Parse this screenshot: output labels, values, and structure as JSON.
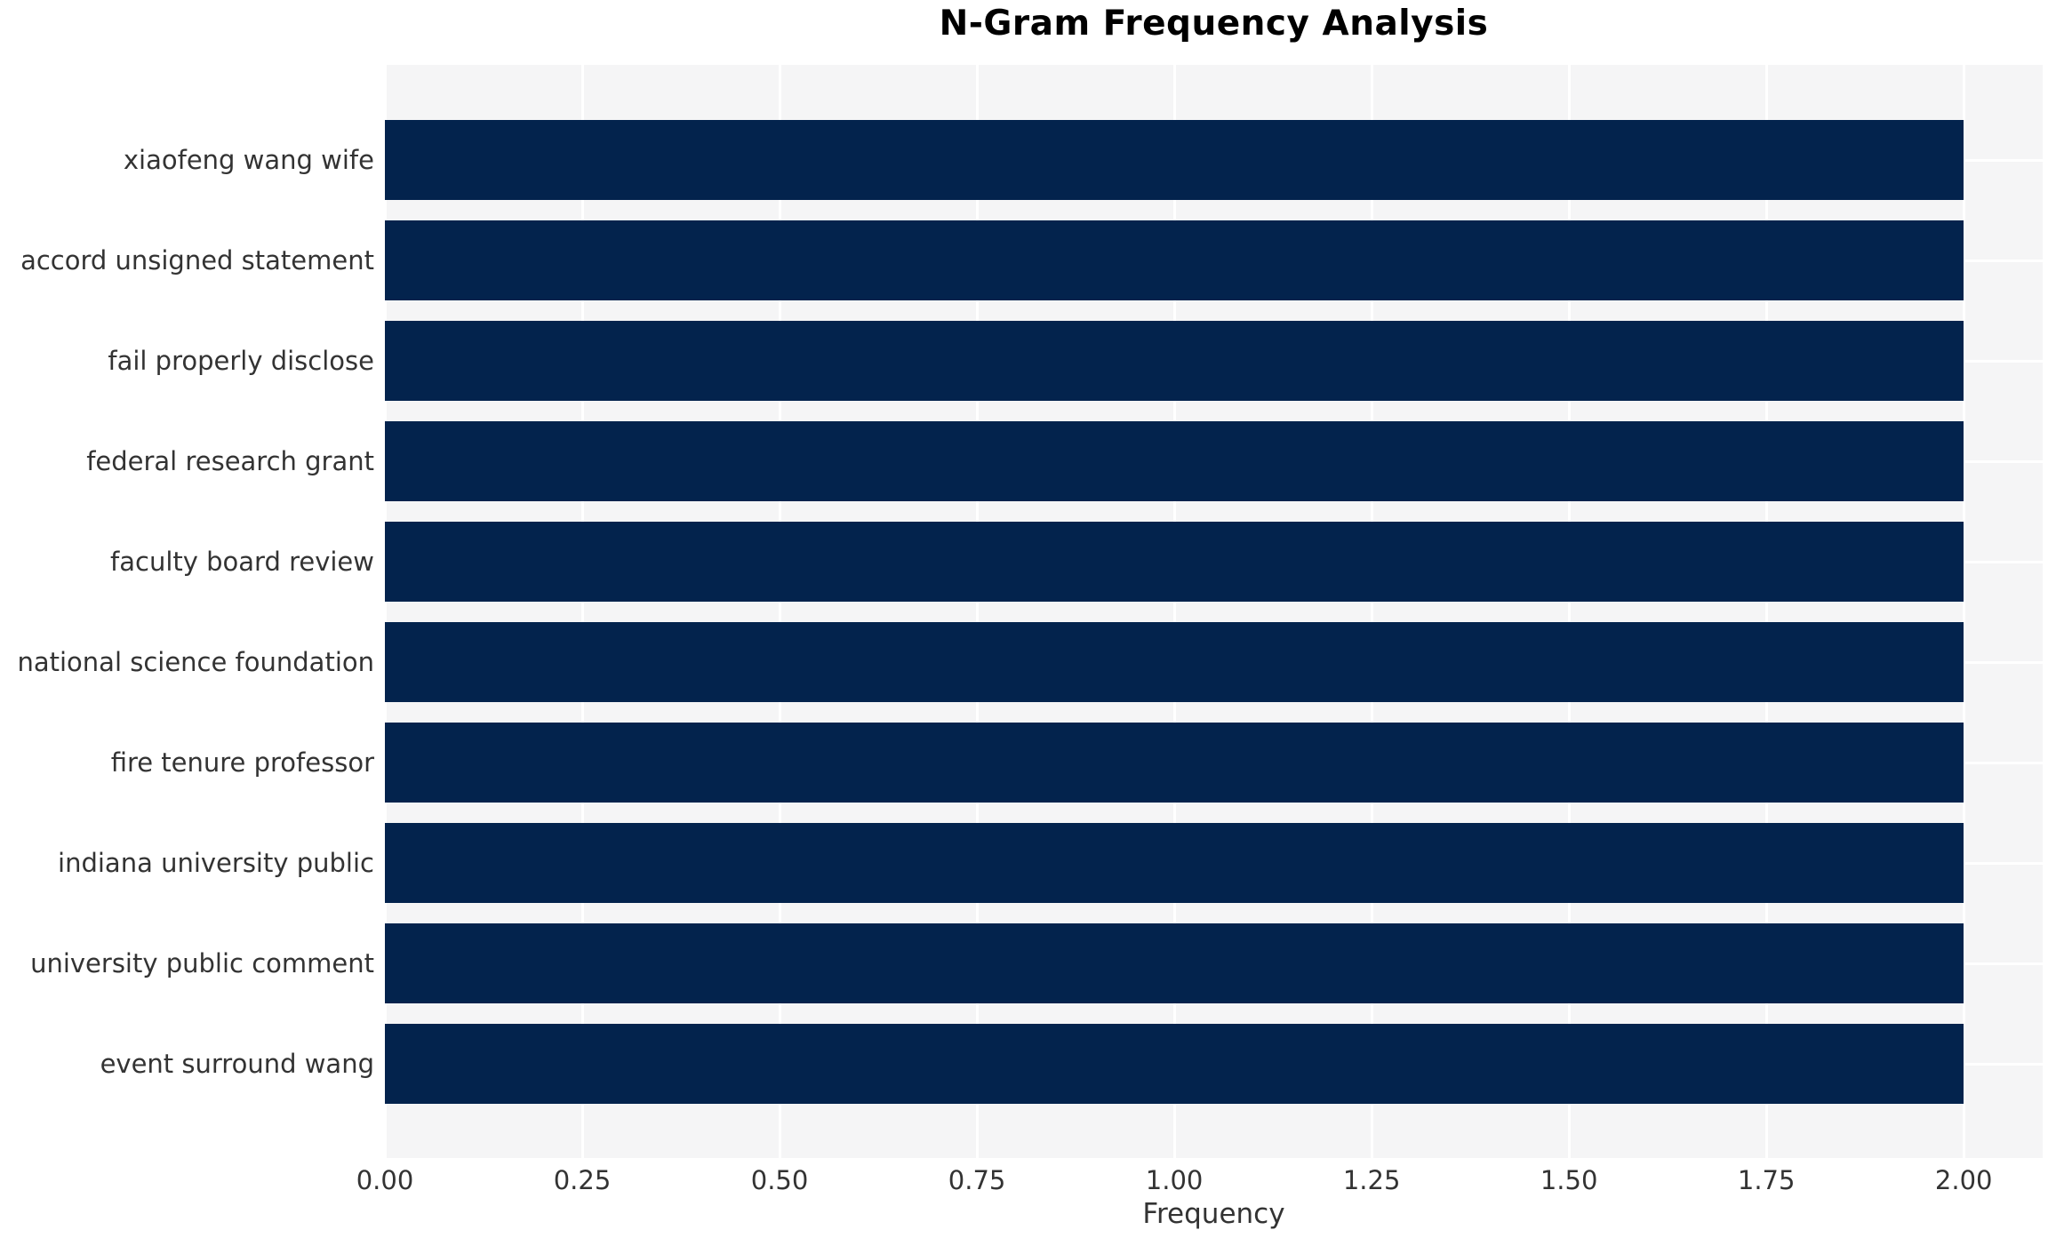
{
  "chart_data": {
    "type": "bar",
    "orientation": "horizontal",
    "title": "N-Gram Frequency Analysis",
    "xlabel": "Frequency",
    "ylabel": "",
    "categories": [
      "xiaofeng wang wife",
      "accord unsigned statement",
      "fail properly disclose",
      "federal research grant",
      "faculty board review",
      "national science foundation",
      "fire tenure professor",
      "indiana university public",
      "university public comment",
      "event surround wang"
    ],
    "values": [
      2,
      2,
      2,
      2,
      2,
      2,
      2,
      2,
      2,
      2
    ],
    "xlim": [
      0,
      2.1
    ],
    "xticks": [
      "0.00",
      "0.25",
      "0.50",
      "0.75",
      "1.00",
      "1.25",
      "1.50",
      "1.75",
      "2.00"
    ],
    "xtick_values": [
      0,
      0.25,
      0.5,
      0.75,
      1.0,
      1.25,
      1.5,
      1.75,
      2.0
    ],
    "grid": true,
    "legend": false,
    "colors": {
      "bar": "#03234d",
      "plot_background": "#f5f5f6",
      "gridline": "#ffffff",
      "title_text": "#000000",
      "axis_text": "#333333",
      "figure_background": "#ffffff"
    }
  }
}
